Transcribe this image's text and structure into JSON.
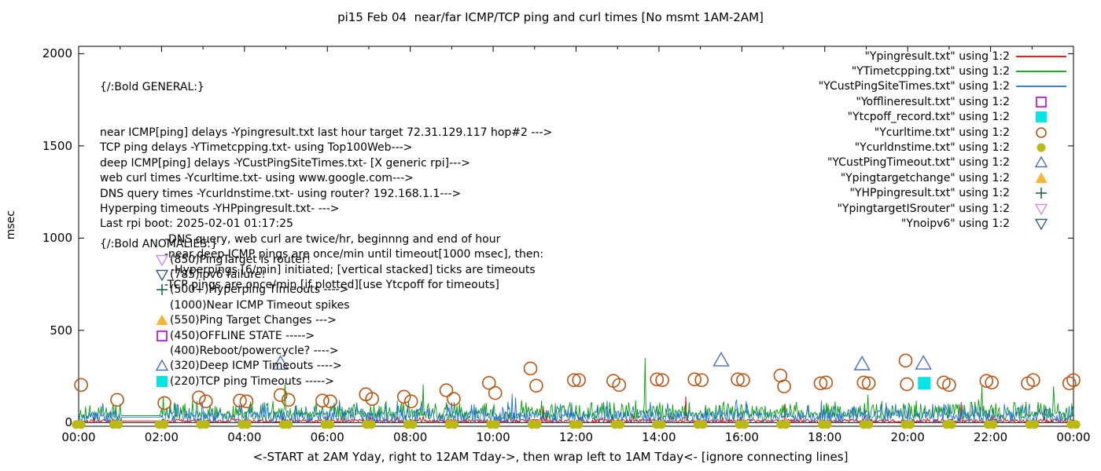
{
  "chart_data": {
    "type": "line+scatter",
    "title": "pi15 Feb 04  near/far ICMP/TCP ping and curl times [No msmt 1AM-2AM]",
    "xlabel": "<-START at 2AM Yday, right to 12AM Tday->, then wrap left to 1AM Tday<- [ignore connecting lines]",
    "ylabel": "msec",
    "grid": "off",
    "legend_position": "top-right-inside",
    "x_axis": {
      "range_hours": [
        0,
        24
      ],
      "major_tick_every_h": 2,
      "minor_tick_every_h": 1,
      "tick_labels": [
        "00:00",
        "02:00",
        "04:00",
        "06:00",
        "08:00",
        "10:00",
        "12:00",
        "14:00",
        "16:00",
        "18:00",
        "20:00",
        "22:00",
        "00:00"
      ]
    },
    "y_axis": {
      "label": "msec",
      "ticks": [
        0,
        500,
        1000,
        1500,
        2000
      ],
      "display_range": [
        -20,
        2040
      ]
    },
    "no_measurement_window_h": [
      1,
      2
    ],
    "line_series": [
      {
        "name": "Ypingresult.txt",
        "color": "#dd0000",
        "baseline_ms": 9,
        "noise_ms": 10,
        "spike_prob": 0.06,
        "spike_amp_ms": 28,
        "seed": 101,
        "spikes": [
          [
            14.65,
            140
          ],
          [
            17.05,
            100
          ],
          [
            11.2,
            90
          ],
          [
            21.3,
            110
          ],
          [
            23.3,
            90
          ]
        ]
      },
      {
        "name": "YTimetcpping.txt",
        "color": "#00a000",
        "baseline_ms": 38,
        "noise_ms": 20,
        "spike_prob": 0.45,
        "spike_amp_ms": 70,
        "seed": 202,
        "spikes": [
          [
            2.05,
            140
          ],
          [
            4.97,
            215
          ],
          [
            8.31,
            205
          ],
          [
            13.66,
            350
          ],
          [
            19.05,
            150
          ],
          [
            21.8,
            200
          ],
          [
            23.52,
            195
          ]
        ]
      },
      {
        "name": "YCustPingSiteTimes.txt",
        "color": "#1e6ed7",
        "baseline_ms": 30,
        "noise_ms": 36,
        "spike_prob": 0.3,
        "spike_amp_ms": 60,
        "seed": 303,
        "spikes": [
          [
            6.3,
            120
          ],
          [
            10.45,
            155
          ],
          [
            10.55,
            135
          ],
          [
            16.1,
            115
          ],
          [
            20.6,
            100
          ]
        ]
      }
    ],
    "scatter_series": [
      {
        "name": "Ycurltime.txt",
        "marker": "open-circle",
        "color": "#b85513",
        "points": [
          [
            0.06,
            204
          ],
          [
            0.93,
            123
          ],
          [
            2.07,
            106
          ],
          [
            2.9,
            136
          ],
          [
            3.07,
            115
          ],
          [
            3.89,
            119
          ],
          [
            4.05,
            115
          ],
          [
            4.87,
            149
          ],
          [
            5.06,
            123
          ],
          [
            5.88,
            119
          ],
          [
            6.07,
            115
          ],
          [
            6.93,
            153
          ],
          [
            7.08,
            128
          ],
          [
            7.85,
            140
          ],
          [
            8.02,
            115
          ],
          [
            8.87,
            175
          ],
          [
            9.05,
            128
          ],
          [
            9.9,
            215
          ],
          [
            10.05,
            160
          ],
          [
            10.9,
            293
          ],
          [
            11.04,
            200
          ],
          [
            11.95,
            230
          ],
          [
            12.07,
            230
          ],
          [
            12.9,
            226
          ],
          [
            13.04,
            204
          ],
          [
            13.95,
            234
          ],
          [
            14.08,
            230
          ],
          [
            14.86,
            234
          ],
          [
            15.03,
            230
          ],
          [
            15.9,
            234
          ],
          [
            16.03,
            230
          ],
          [
            16.93,
            255
          ],
          [
            17.02,
            196
          ],
          [
            17.9,
            213
          ],
          [
            18.03,
            217
          ],
          [
            18.94,
            217
          ],
          [
            19.06,
            213
          ],
          [
            19.95,
            336
          ],
          [
            19.98,
            208
          ],
          [
            20.87,
            217
          ],
          [
            21.0,
            204
          ],
          [
            21.9,
            226
          ],
          [
            22.03,
            217
          ],
          [
            22.9,
            213
          ],
          [
            23.03,
            230
          ],
          [
            23.9,
            213
          ],
          [
            24.0,
            230
          ]
        ]
      },
      {
        "name": "Ycurldnstime.txt",
        "marker": "filled-circle-pair",
        "color": "#b9b910",
        "points": [
          [
            0,
            2
          ],
          [
            0.9,
            2
          ],
          [
            2,
            2
          ],
          [
            3,
            2
          ],
          [
            4,
            2
          ],
          [
            5,
            2
          ],
          [
            6,
            2
          ],
          [
            7,
            2
          ],
          [
            8,
            2
          ],
          [
            9,
            2
          ],
          [
            10,
            2
          ],
          [
            11,
            2
          ],
          [
            12,
            2
          ],
          [
            13,
            2
          ],
          [
            14,
            2
          ],
          [
            15,
            2
          ],
          [
            16,
            2
          ],
          [
            17,
            2
          ],
          [
            18,
            2
          ],
          [
            19,
            2
          ],
          [
            20,
            2
          ],
          [
            21,
            2
          ],
          [
            22,
            2
          ],
          [
            23,
            2
          ],
          [
            24,
            2
          ]
        ]
      },
      {
        "name": "YCustPingTimeout.txt",
        "marker": "open-triangle-up",
        "color": "#4a6dbe",
        "points": [
          [
            4.87,
            322
          ],
          [
            15.5,
            340
          ],
          [
            18.9,
            319
          ],
          [
            20.38,
            323
          ]
        ]
      },
      {
        "name": "Ytcpoff_record.txt",
        "marker": "filled-square",
        "color": "#00e5e5",
        "points": [
          [
            20.4,
            213
          ]
        ]
      },
      {
        "name": "Yofflineresult.txt",
        "marker": "open-square",
        "color": "#b200d2",
        "points": []
      },
      {
        "name": "Ypingtargetchange",
        "marker": "filled-triangle-up",
        "color": "#fcb434",
        "points": []
      },
      {
        "name": "YHPpingresult.txt",
        "marker": "plus",
        "color": "#1a6b4d",
        "points": []
      },
      {
        "name": "YpingtargetISrouter",
        "marker": "open-triangle-down",
        "color": "#c98bfa",
        "points": []
      },
      {
        "name": "Ynoipv6",
        "marker": "open-triangle-down",
        "color": "#325f73",
        "points": []
      }
    ]
  },
  "legend": {
    "items": [
      {
        "label": "\"Ypingresult.txt\" using 1:2",
        "swatch": "line",
        "color": "#dd0000"
      },
      {
        "label": "\"YTimetcpping.txt\" using 1:2",
        "swatch": "line",
        "color": "#00a000"
      },
      {
        "label": "\"YCustPingSiteTimes.txt\" using 1:2",
        "swatch": "line",
        "color": "#1e6ed7"
      },
      {
        "label": "\"Yofflineresult.txt\" using 1:2",
        "swatch": "open-square",
        "color": "#b200d2"
      },
      {
        "label": "\"Ytcpoff_record.txt\" using 1:2",
        "swatch": "filled-square",
        "color": "#00e5e5"
      },
      {
        "label": "\"Ycurltime.txt\" using 1:2",
        "swatch": "open-circle",
        "color": "#b85513"
      },
      {
        "label": "\"Ycurldnstime.txt\" using 1:2",
        "swatch": "filled-circle",
        "color": "#b9b910"
      },
      {
        "label": "\"YCustPingTimeout.txt\" using 1:2",
        "swatch": "open-triangle-up",
        "color": "#4a6dbe"
      },
      {
        "label": "\"Ypingtargetchange\" using 1:2",
        "swatch": "filled-triangle-up",
        "color": "#fcb434"
      },
      {
        "label": "\"YHPpingresult.txt\" using 1:2",
        "swatch": "plus",
        "color": "#1a6b4d"
      },
      {
        "label": "\"YpingtargetISrouter\" using 1:2",
        "swatch": "open-triangle-down",
        "color": "#c98bfa"
      },
      {
        "label": "\"Ynoipv6\" using 1:2",
        "swatch": "open-triangle-down",
        "color": "#325f73"
      }
    ]
  },
  "annotations": {
    "general": {
      "heading": "{/:Bold GENERAL:}",
      "lines": [
        {
          "text": "near ICMP[ping] delays -Ypingresult.txt last hour target 72.31.129.117 hop#2 --->",
          "indent": 0
        },
        {
          "text": "TCP ping delays -YTimetcpping.txt- using Top100Web--->",
          "indent": 0
        },
        {
          "text": "deep ICMP[ping] delays -YCustPingSiteTimes.txt- [X generic rpi]--->",
          "indent": 0
        },
        {
          "text": "web curl times -Ycurltime.txt- using www.google.com--->",
          "indent": 0
        },
        {
          "text": "DNS query times -Ycurldnstime.txt- using router? 192.168.1.1--->",
          "indent": 0
        },
        {
          "text": "Hyperping timeouts -YHPpingresult.txt- --->",
          "indent": 0
        },
        {
          "text": "Last rpi boot: 2025-02-01 01:17:25",
          "indent": 0
        },
        {
          "text": "-DNS query, web curl are twice/hr, beginnng and end of hour",
          "indent": 1
        },
        {
          "text": "-near,deep ICMP pings are once/min until timeout[1000 msec], then:",
          "indent": 1
        },
        {
          "text": "-Hyperpings [6/min] initiated; [vertical stacked] ticks are timeouts",
          "indent": 2
        },
        {
          "text": "-TCP pings are once/min [if plotted][use Ytcpoff for timeouts]",
          "indent": 1
        }
      ]
    },
    "anomalies": {
      "heading": "{/:Bold ANOMALIES:}",
      "rows": [
        {
          "marker": "open-triangle-down",
          "color": "#c98bfa",
          "text": "(850)PingTarget is router!"
        },
        {
          "marker": "open-triangle-down",
          "color": "#325f73",
          "text": "(785)ipv6 failure!"
        },
        {
          "marker": "plus",
          "color": "#1a6b4d",
          "text": "(500+)Hyperping Timeouts ---->"
        },
        {
          "marker": "none",
          "color": "",
          "text": "(1000)Near ICMP Timeout spikes"
        },
        {
          "marker": "filled-triangle-up",
          "color": "#fcb434",
          "text": "(550)Ping Target Changes --->"
        },
        {
          "marker": "open-square",
          "color": "#b200d2",
          "text": "(450)OFFLINE STATE ----->"
        },
        {
          "marker": "none",
          "color": "",
          "text": "(400)Reboot/powercycle? ---->"
        },
        {
          "marker": "open-triangle-up",
          "color": "#4a6dbe",
          "text": "(320)Deep ICMP Timeouts ---->"
        },
        {
          "marker": "filled-square",
          "color": "#00e5e5",
          "text": "(220)TCP ping Timeouts ----->"
        }
      ]
    }
  }
}
